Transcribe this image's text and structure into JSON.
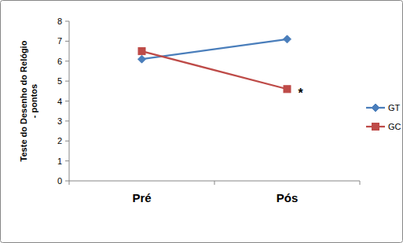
{
  "chart_data": {
    "type": "line",
    "y_label": "Teste do Desenho do Relógio - pontos",
    "categories": [
      "Pré",
      "Pós"
    ],
    "series": [
      {
        "name": "GT",
        "color": "#4a7ebb",
        "marker": "diamond",
        "line_style": "solid",
        "values": [
          6.1,
          7.1
        ]
      },
      {
        "name": "GC",
        "color": "#be4b48",
        "marker": "square",
        "line_style": "solid",
        "values": [
          6.5,
          4.6
        ]
      }
    ],
    "ylim": [
      0,
      8
    ],
    "yticks": [
      0,
      1,
      2,
      3,
      4,
      5,
      6,
      7,
      8
    ],
    "grid": false,
    "legend": "right",
    "annotations": [
      {
        "text": "*",
        "series": "GC",
        "category": "Pós"
      }
    ]
  }
}
